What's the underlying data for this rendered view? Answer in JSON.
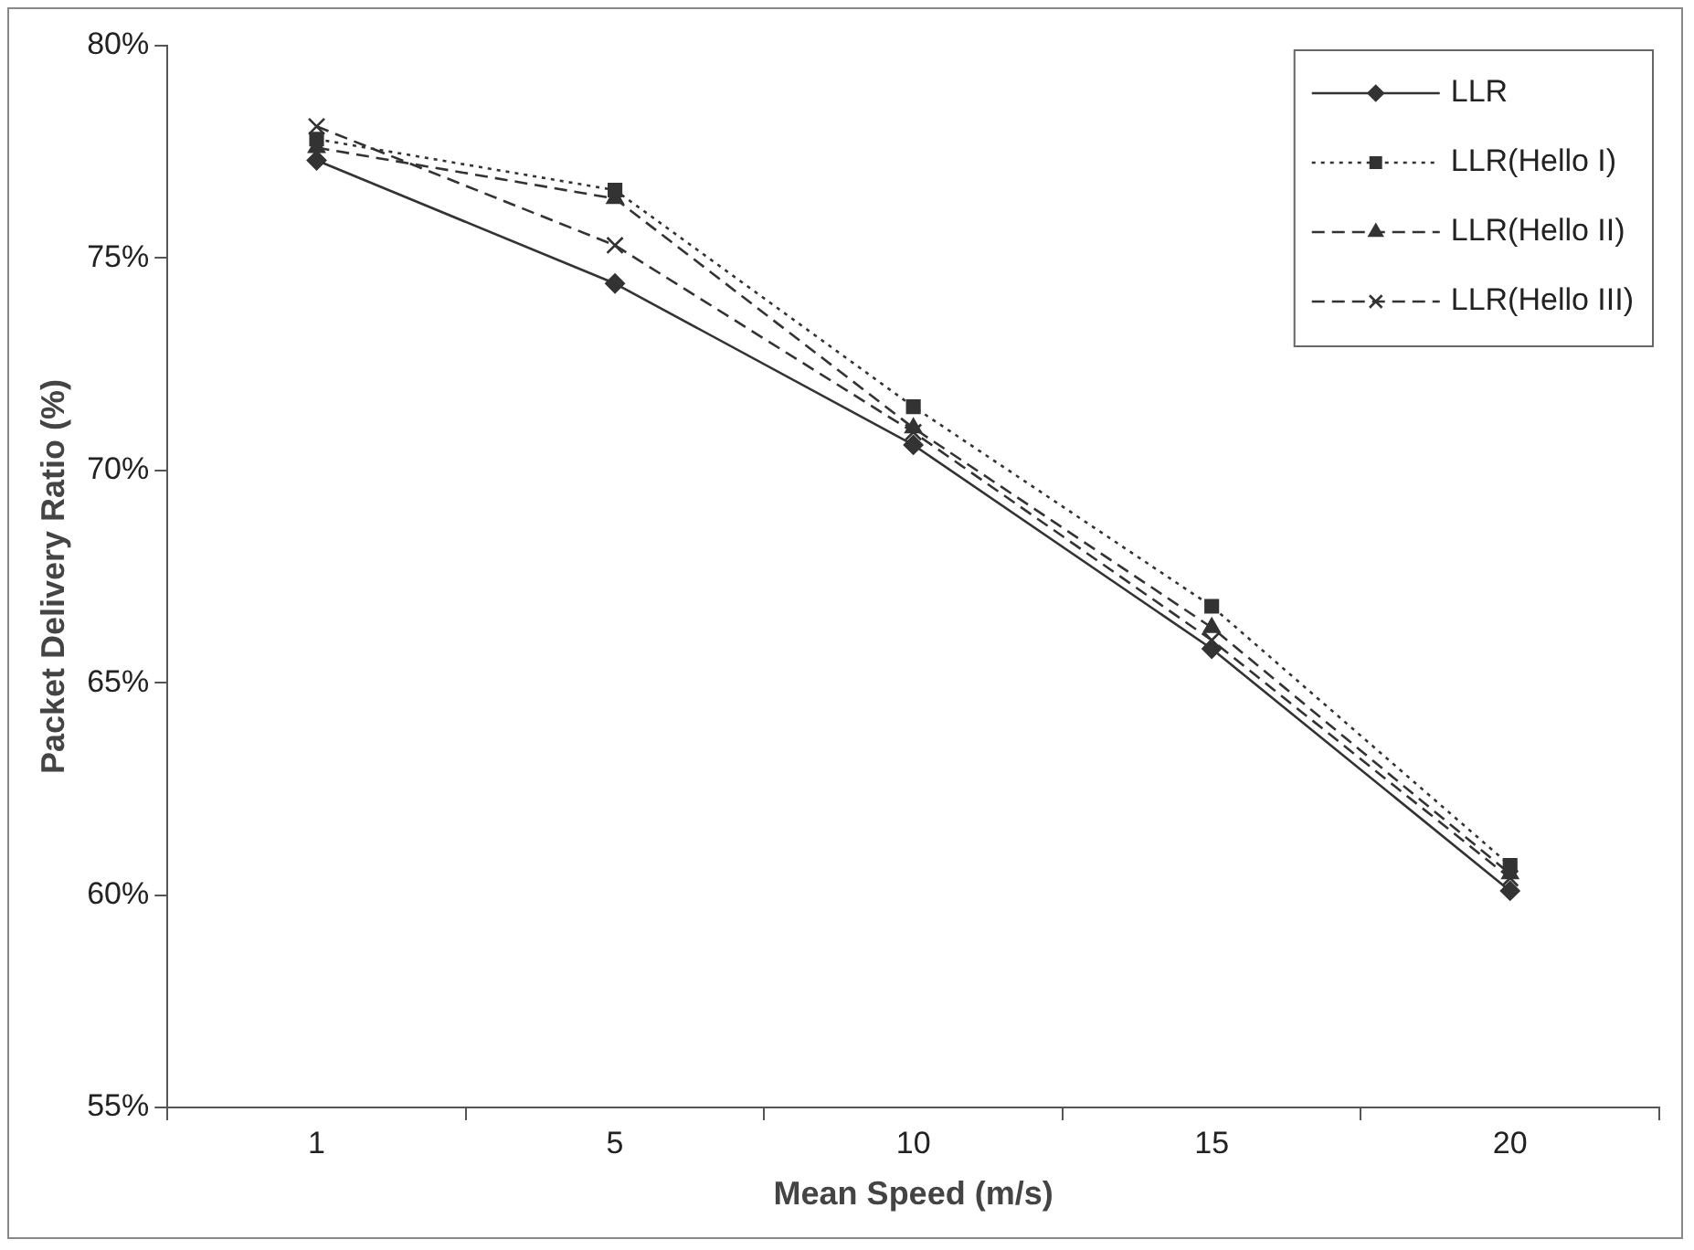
{
  "chart_data": {
    "type": "line",
    "xlabel": "Mean Speed (m/s)",
    "ylabel": "Packet Delivery Ratio (%)",
    "categories": [
      "1",
      "5",
      "10",
      "15",
      "20"
    ],
    "ylim": [
      55,
      80
    ],
    "yticks": [
      {
        "value": 55,
        "label": "55%"
      },
      {
        "value": 60,
        "label": "60%"
      },
      {
        "value": 65,
        "label": "65%"
      },
      {
        "value": 70,
        "label": "70%"
      },
      {
        "value": 75,
        "label": "75%"
      },
      {
        "value": 80,
        "label": "80%"
      }
    ],
    "grid": false,
    "legend": "top right",
    "series": [
      {
        "name": "LLR",
        "color": "#333333",
        "marker": "diamond",
        "line_style": "solid",
        "values": [
          77.3,
          74.4,
          70.6,
          65.8,
          60.1
        ]
      },
      {
        "name": "LLR(Hello I)",
        "color": "#333333",
        "marker": "square",
        "line_style": "dotted",
        "values": [
          77.8,
          76.6,
          71.5,
          66.8,
          60.7
        ]
      },
      {
        "name": "LLR(Hello II)",
        "color": "#333333",
        "marker": "triangle",
        "line_style": "dashed",
        "values": [
          77.6,
          76.4,
          71.0,
          66.3,
          60.5
        ]
      },
      {
        "name": "LLR(Hello III)",
        "color": "#333333",
        "marker": "cross",
        "line_style": "dashed",
        "values": [
          78.1,
          75.3,
          70.9,
          66.0,
          60.4
        ]
      }
    ]
  }
}
